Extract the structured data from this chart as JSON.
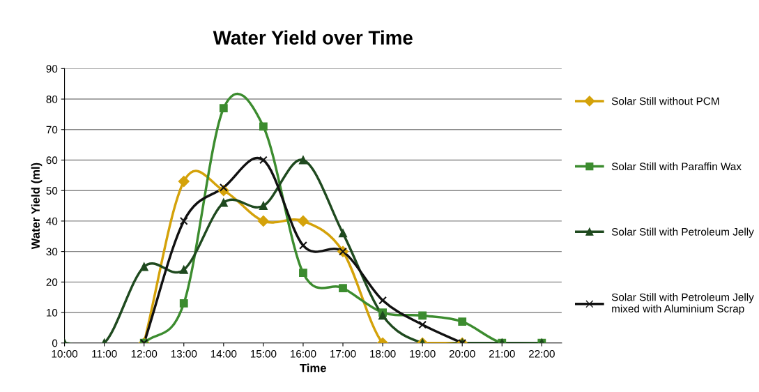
{
  "chart_data": {
    "type": "line",
    "title": "Water Yield over Time",
    "xlabel": "Time",
    "ylabel": "Water Yield (ml)",
    "categories": [
      "10:00",
      "11:00",
      "12:00",
      "13:00",
      "14:00",
      "15:00",
      "16:00",
      "17:00",
      "18:00",
      "19:00",
      "20:00",
      "21:00",
      "22:00"
    ],
    "ylim": [
      0,
      90
    ],
    "yticks": [
      0,
      10,
      20,
      30,
      40,
      50,
      60,
      70,
      80,
      90
    ],
    "grid": "y",
    "legend": "right",
    "series": [
      {
        "name": "Solar Still without PCM",
        "color": "#d4a20a",
        "marker": "diamond",
        "values": [
          null,
          null,
          0,
          53,
          50,
          40,
          40,
          30,
          0,
          0,
          0,
          null,
          null
        ]
      },
      {
        "name": "Solar Still with Paraffin Wax",
        "color": "#3c8c2f",
        "marker": "square",
        "values": [
          null,
          null,
          0,
          13,
          77,
          71,
          23,
          18,
          10,
          9,
          7,
          0,
          0
        ]
      },
      {
        "name": "Solar Still with Petroleum Jelly",
        "color": "#1f4a1f",
        "marker": "triangle",
        "values": [
          0,
          0,
          25,
          24,
          46,
          45,
          60,
          36,
          9,
          0,
          0,
          0,
          0
        ]
      },
      {
        "name": "Solar Still with Petroleum Jelly\nmixed with Aluminium Scrap",
        "color": "#111111",
        "marker": "cross",
        "values": [
          null,
          null,
          0,
          40,
          51,
          60,
          32,
          30,
          14,
          6,
          0,
          null,
          null
        ]
      }
    ]
  }
}
